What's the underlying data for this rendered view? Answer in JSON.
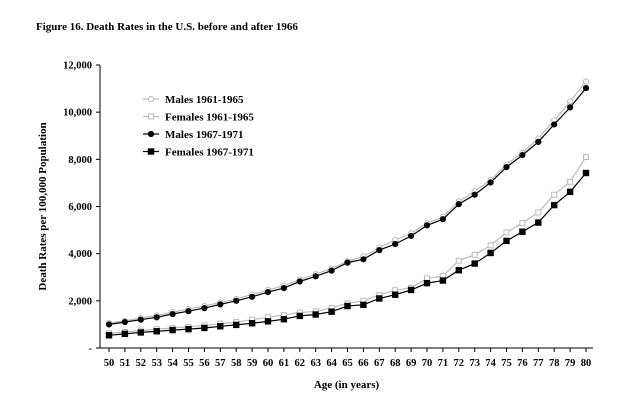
{
  "title": "Figure 16. Death Rates in the U.S. before and after 1966",
  "chart_data": {
    "type": "line",
    "xlabel": "Age (in years)",
    "ylabel": "Death Rates per 100,000 Population",
    "xlim": [
      50,
      80
    ],
    "ylim": [
      0,
      12000
    ],
    "yticks": [
      0,
      2000,
      4000,
      6000,
      8000,
      10000,
      12000
    ],
    "ytick_labels": [
      "-",
      "2,000",
      "4,000",
      "6,000",
      "8,000",
      "10,000",
      "12,000"
    ],
    "x": [
      50,
      51,
      52,
      53,
      54,
      55,
      56,
      57,
      58,
      59,
      60,
      61,
      62,
      63,
      64,
      65,
      66,
      67,
      68,
      69,
      70,
      71,
      72,
      73,
      74,
      75,
      76,
      77,
      78,
      79,
      80
    ],
    "grid": false,
    "legend_position": "top-left",
    "series": [
      {
        "name": "Males 1961-1965",
        "marker": "circle-open",
        "color": "#bbbbbb",
        "values": [
          1050,
          1150,
          1270,
          1380,
          1520,
          1650,
          1780,
          1930,
          2080,
          2270,
          2460,
          2640,
          2900,
          3130,
          3370,
          3680,
          3880,
          4260,
          4580,
          4860,
          5290,
          5560,
          6220,
          6650,
          7130,
          7780,
          8280,
          8880,
          9650,
          10450,
          11300
        ]
      },
      {
        "name": "Females 1961-1965",
        "marker": "square-open",
        "color": "#bbbbbb",
        "values": [
          620,
          680,
          740,
          800,
          850,
          900,
          960,
          1030,
          1100,
          1200,
          1300,
          1400,
          1500,
          1550,
          1700,
          1900,
          2000,
          2250,
          2450,
          2550,
          2950,
          3050,
          3700,
          3950,
          4350,
          4900,
          5300,
          5750,
          6500,
          7050,
          8100
        ]
      },
      {
        "name": "Males 1967-1971",
        "marker": "circle-filled",
        "color": "#000000",
        "values": [
          1000,
          1100,
          1200,
          1300,
          1440,
          1560,
          1690,
          1850,
          2000,
          2170,
          2370,
          2540,
          2820,
          3040,
          3280,
          3620,
          3760,
          4150,
          4410,
          4750,
          5200,
          5460,
          6100,
          6500,
          7020,
          7670,
          8180,
          8740,
          9480,
          10200,
          11020
        ]
      },
      {
        "name": "Females 1967-1971",
        "marker": "square-filled",
        "color": "#000000",
        "values": [
          540,
          600,
          660,
          710,
          760,
          800,
          850,
          920,
          980,
          1050,
          1130,
          1220,
          1360,
          1420,
          1540,
          1780,
          1830,
          2100,
          2260,
          2460,
          2750,
          2860,
          3300,
          3580,
          4030,
          4540,
          4930,
          5320,
          6060,
          6620,
          7420
        ]
      }
    ]
  }
}
